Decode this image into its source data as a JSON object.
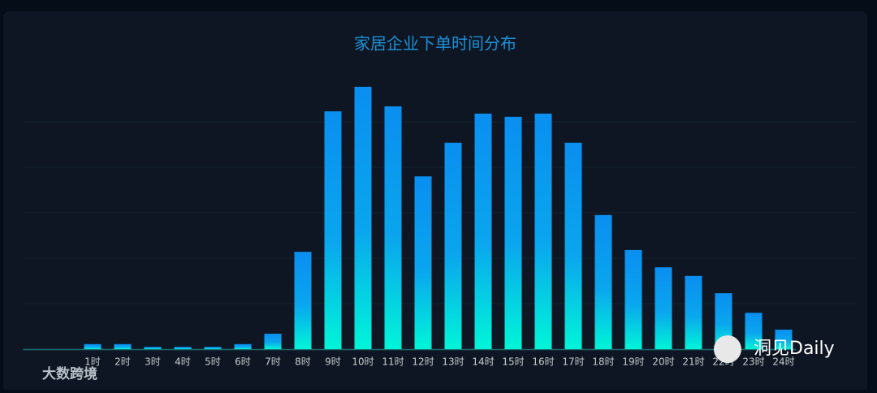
{
  "chart_data": {
    "type": "bar",
    "title": "家居企业下单时间分布",
    "categories": [
      "1时",
      "2时",
      "3时",
      "4时",
      "5时",
      "6时",
      "7时",
      "8时",
      "9时",
      "10时",
      "11时",
      "12时",
      "13时",
      "14时",
      "15时",
      "16时",
      "17时",
      "18时",
      "19时",
      "20时",
      "21时",
      "22时",
      "23时",
      "24时"
    ],
    "values": [
      0.11,
      0.11,
      0.05,
      0.05,
      0.05,
      0.11,
      0.34,
      2.14,
      5.23,
      5.77,
      5.34,
      3.8,
      4.54,
      5.18,
      5.11,
      5.18,
      4.54,
      2.95,
      2.18,
      1.8,
      1.61,
      1.23,
      0.8,
      0.43
    ],
    "ylim": [
      0,
      6
    ],
    "grid": true,
    "color": "#0a8ff0"
  },
  "watermarks": [
    "大数跨境",
    "洞见Daily"
  ]
}
